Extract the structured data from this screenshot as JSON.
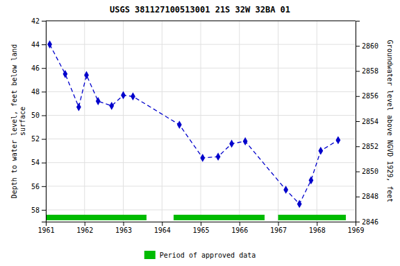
{
  "chart_data": {
    "type": "line",
    "title": "USGS 381127100513001 21S 32W 32BA  01",
    "x": [
      1961.1,
      1961.5,
      1961.85,
      1962.05,
      1962.35,
      1962.7,
      1963.0,
      1963.25,
      1964.45,
      1965.05,
      1965.45,
      1965.8,
      1966.15,
      1967.2,
      1967.55,
      1967.85,
      1968.1,
      1968.55
    ],
    "series": [
      {
        "color": "#0000CC",
        "marker": "diamond",
        "line_style": "dashed",
        "values": [
          44.0,
          46.5,
          49.3,
          46.6,
          48.8,
          49.2,
          48.3,
          48.4,
          50.8,
          53.6,
          53.5,
          52.4,
          52.2,
          56.3,
          57.5,
          55.5,
          53.0,
          52.1
        ]
      }
    ],
    "xlim": [
      1961,
      1969
    ],
    "xticks": [
      1961,
      1962,
      1963,
      1964,
      1965,
      1966,
      1967,
      1968,
      1969
    ],
    "ylim": [
      59,
      42
    ],
    "yticks": [
      42,
      44,
      46,
      48,
      50,
      52,
      54,
      56,
      58
    ],
    "y2lim": [
      2846,
      2862
    ],
    "y2ticks": [
      2846,
      2848,
      2850,
      2852,
      2854,
      2856,
      2858,
      2860
    ],
    "y_label": "Depth to water level, feet below land\nsurface",
    "y2_label": "Groundwater level above NGVD 1929, feet",
    "approved_periods": {
      "label": "Period of approved data",
      "color": "#00BB00",
      "ranges": [
        [
          1961.0,
          1963.6
        ],
        [
          1964.3,
          1966.65
        ],
        [
          1967.0,
          1968.75
        ]
      ]
    },
    "grid": true,
    "legend": "bottom"
  }
}
